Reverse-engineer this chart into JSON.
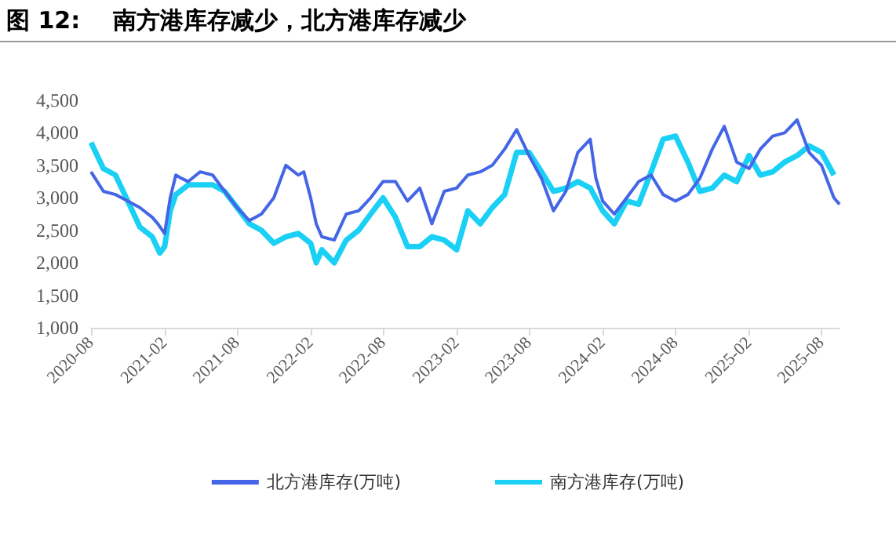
{
  "chart_data": {
    "type": "line",
    "title": "图 12:    南方港库存减少，北方港库存减少",
    "marker": "none",
    "grid": false,
    "legend": "bottom",
    "xlim": [
      "2020-08",
      "2025-09-15"
    ],
    "xticks": [
      {
        "value": "2020-08",
        "label": "2020-08"
      },
      {
        "value": "2021-02",
        "label": "2021-02"
      },
      {
        "value": "2021-08",
        "label": "2021-08"
      },
      {
        "value": "2022-02",
        "label": "2022-02"
      },
      {
        "value": "2022-08",
        "label": "2022-08"
      },
      {
        "value": "2023-02",
        "label": "2023-02"
      },
      {
        "value": "2023-08",
        "label": "2023-08"
      },
      {
        "value": "2024-02",
        "label": "2024-02"
      },
      {
        "value": "2024-08",
        "label": "2024-08"
      },
      {
        "value": "2025-02",
        "label": "2025-02"
      },
      {
        "value": "2025-08",
        "label": "2025-08"
      }
    ],
    "ylim": [
      1000,
      4500
    ],
    "yticks": [
      {
        "value": 1000,
        "label": "1,000"
      },
      {
        "value": 1500,
        "label": "1,500"
      },
      {
        "value": 2000,
        "label": "2,000"
      },
      {
        "value": 2500,
        "label": "2,500"
      },
      {
        "value": 3000,
        "label": "3,000"
      },
      {
        "value": 3500,
        "label": "3,500"
      },
      {
        "value": 4000,
        "label": "4,000"
      },
      {
        "value": 4500,
        "label": "4,500"
      }
    ],
    "series": [
      {
        "name": "北方港库存(万吨)",
        "color": "#4466e6",
        "x": [
          "2020-08",
          "2020-09",
          "2020-10",
          "2020-11",
          "2020-12",
          "2021-01",
          "2021-01-15",
          "2021-02",
          "2021-02-15",
          "2021-03",
          "2021-03-15",
          "2021-04",
          "2021-05",
          "2021-06",
          "2021-07",
          "2021-08",
          "2021-09",
          "2021-10",
          "2021-11",
          "2021-12",
          "2022-01",
          "2022-01-15",
          "2022-02",
          "2022-02-15",
          "2022-03",
          "2022-04",
          "2022-05",
          "2022-06",
          "2022-07",
          "2022-08",
          "2022-09",
          "2022-10",
          "2022-11",
          "2022-12",
          "2023-01",
          "2023-02",
          "2023-03",
          "2023-04",
          "2023-05",
          "2023-06",
          "2023-07",
          "2023-08",
          "2023-09",
          "2023-10",
          "2023-11",
          "2023-12",
          "2024-01",
          "2024-01-15",
          "2024-02",
          "2024-03",
          "2024-04",
          "2024-05",
          "2024-06",
          "2024-07",
          "2024-08",
          "2024-09",
          "2024-10",
          "2024-11",
          "2024-12",
          "2025-01",
          "2025-02",
          "2025-03",
          "2025-04",
          "2025-05",
          "2025-06",
          "2025-07",
          "2025-08",
          "2025-09",
          "2025-09-15"
        ],
        "values": [
          3400,
          3100,
          3050,
          2950,
          2850,
          2700,
          2600,
          2450,
          3000,
          3350,
          3300,
          3250,
          3400,
          3350,
          3100,
          2850,
          2650,
          2750,
          3000,
          3500,
          3350,
          3400,
          3000,
          2600,
          2400,
          2350,
          2750,
          2800,
          3000,
          3250,
          3250,
          2950,
          3150,
          2600,
          3100,
          3150,
          3350,
          3400,
          3500,
          3750,
          4050,
          3650,
          3300,
          2800,
          3100,
          3700,
          3900,
          3300,
          2950,
          2750,
          3000,
          3250,
          3350,
          3050,
          2950,
          3050,
          3300,
          3750,
          4100,
          3550,
          3450,
          3750,
          3950,
          4000,
          4200,
          3700,
          3500,
          3000,
          2900
        ]
      },
      {
        "name": "南方港库存(万吨)",
        "color": "#1ad0f5",
        "x": [
          "2020-08",
          "2020-09",
          "2020-10",
          "2020-11",
          "2020-12",
          "2021-01",
          "2021-01-20",
          "2021-02",
          "2021-02-15",
          "2021-03",
          "2021-04",
          "2021-05",
          "2021-06",
          "2021-07",
          "2021-08",
          "2021-09",
          "2021-10",
          "2021-11",
          "2021-12",
          "2022-01",
          "2022-02",
          "2022-02-15",
          "2022-03",
          "2022-04",
          "2022-05",
          "2022-06",
          "2022-07",
          "2022-08",
          "2022-09",
          "2022-10",
          "2022-11",
          "2022-12",
          "2023-01",
          "2023-02",
          "2023-03",
          "2023-04",
          "2023-05",
          "2023-06",
          "2023-07",
          "2023-08",
          "2023-09",
          "2023-10",
          "2023-11",
          "2023-12",
          "2024-01",
          "2024-02",
          "2024-03",
          "2024-04",
          "2024-05",
          "2024-06",
          "2024-07",
          "2024-08",
          "2024-09",
          "2024-10",
          "2024-11",
          "2024-12",
          "2025-01",
          "2025-02",
          "2025-03",
          "2025-04",
          "2025-05",
          "2025-06",
          "2025-07",
          "2025-08",
          "2025-09"
        ],
        "values": [
          3850,
          3450,
          3350,
          2950,
          2550,
          2400,
          2150,
          2250,
          2800,
          3050,
          3200,
          3200,
          3200,
          3100,
          2850,
          2600,
          2500,
          2300,
          2400,
          2450,
          2300,
          2000,
          2200,
          2000,
          2350,
          2500,
          2750,
          3000,
          2700,
          2250,
          2250,
          2400,
          2350,
          2200,
          2800,
          2600,
          2850,
          3050,
          3700,
          3700,
          3400,
          3100,
          3150,
          3250,
          3150,
          2800,
          2600,
          2950,
          2900,
          3400,
          3900,
          3950,
          3550,
          3100,
          3150,
          3350,
          3250,
          3650,
          3350,
          3400,
          3550,
          3650,
          3800,
          3700,
          3350
        ]
      }
    ]
  }
}
